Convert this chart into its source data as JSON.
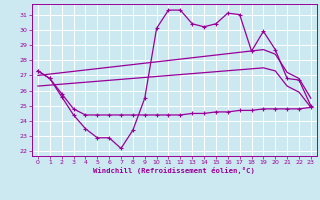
{
  "bg_color": "#cce8f0",
  "grid_color": "#ffffff",
  "line_color": "#990099",
  "xlabel": "Windchill (Refroidissement éolien,°C)",
  "xlim": [
    -0.5,
    23.5
  ],
  "ylim": [
    21.7,
    31.7
  ],
  "yticks": [
    22,
    23,
    24,
    25,
    26,
    27,
    28,
    29,
    30,
    31
  ],
  "xticks": [
    0,
    1,
    2,
    3,
    4,
    5,
    6,
    7,
    8,
    9,
    10,
    11,
    12,
    13,
    14,
    15,
    16,
    17,
    18,
    19,
    20,
    21,
    22,
    23
  ],
  "line1_x": [
    0,
    1,
    2,
    3,
    4,
    5,
    6,
    7,
    8,
    9,
    10,
    11,
    12,
    13,
    14,
    15,
    16,
    17,
    18,
    19,
    20,
    21,
    22,
    23
  ],
  "line1_y": [
    27.3,
    26.8,
    25.6,
    24.4,
    23.5,
    22.9,
    22.9,
    22.2,
    23.4,
    25.5,
    30.1,
    31.3,
    31.3,
    30.4,
    30.2,
    30.4,
    31.1,
    31.0,
    28.6,
    29.9,
    28.7,
    26.8,
    26.7,
    25.0
  ],
  "line2_x": [
    0,
    1,
    2,
    3,
    4,
    5,
    6,
    7,
    8,
    9,
    10,
    11,
    12,
    13,
    14,
    15,
    16,
    17,
    18,
    19,
    20,
    21,
    22,
    23
  ],
  "line2_y": [
    27.3,
    26.8,
    25.8,
    24.8,
    24.4,
    24.4,
    24.4,
    24.4,
    24.4,
    24.4,
    24.4,
    24.4,
    24.4,
    24.5,
    24.5,
    24.6,
    24.6,
    24.7,
    24.7,
    24.8,
    24.8,
    24.8,
    24.8,
    24.9
  ],
  "line3_x": [
    0,
    19,
    20,
    21,
    22,
    23
  ],
  "line3_y": [
    27.0,
    28.7,
    28.4,
    27.2,
    26.8,
    25.5
  ],
  "line4_x": [
    0,
    19,
    20,
    21,
    22,
    23
  ],
  "line4_y": [
    26.3,
    27.5,
    27.3,
    26.3,
    25.9,
    24.9
  ]
}
